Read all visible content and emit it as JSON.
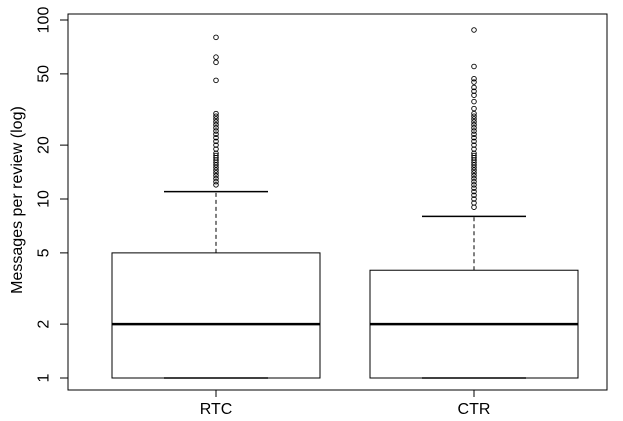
{
  "chart_data": {
    "type": "boxplot",
    "ylabel": "Messages per review (log)",
    "yscale": "log",
    "ylim": [
      1,
      100
    ],
    "yticks": [
      1,
      2,
      5,
      10,
      20,
      50,
      100
    ],
    "ytick_labels": [
      "1",
      "2",
      "5",
      "10",
      "20",
      "50",
      "100"
    ],
    "grid": false,
    "categories": [
      "RTC",
      "CTR"
    ],
    "boxes": [
      {
        "name": "RTC",
        "whisker_low": 1,
        "q1": 1,
        "median": 2,
        "q3": 5,
        "whisker_high": 11,
        "outliers": [
          12,
          12.5,
          13,
          13.5,
          14,
          14.5,
          15,
          15.5,
          16,
          16.5,
          17,
          17.5,
          18,
          19,
          20,
          21,
          22,
          23,
          24,
          25,
          26,
          27,
          28,
          29,
          30,
          46,
          58,
          62,
          80
        ]
      },
      {
        "name": "CTR",
        "whisker_low": 1,
        "q1": 1,
        "median": 2,
        "q3": 4,
        "whisker_high": 8,
        "outliers": [
          9,
          9.5,
          10,
          10.5,
          11,
          11.5,
          12,
          12.5,
          13,
          13.5,
          14,
          14.5,
          15,
          15.5,
          16,
          16.5,
          17,
          17.5,
          18,
          19,
          20,
          21,
          22,
          23,
          24,
          25,
          26,
          27,
          28,
          29,
          30,
          32,
          35,
          38,
          40,
          42,
          45,
          47,
          55,
          88
        ]
      }
    ]
  }
}
